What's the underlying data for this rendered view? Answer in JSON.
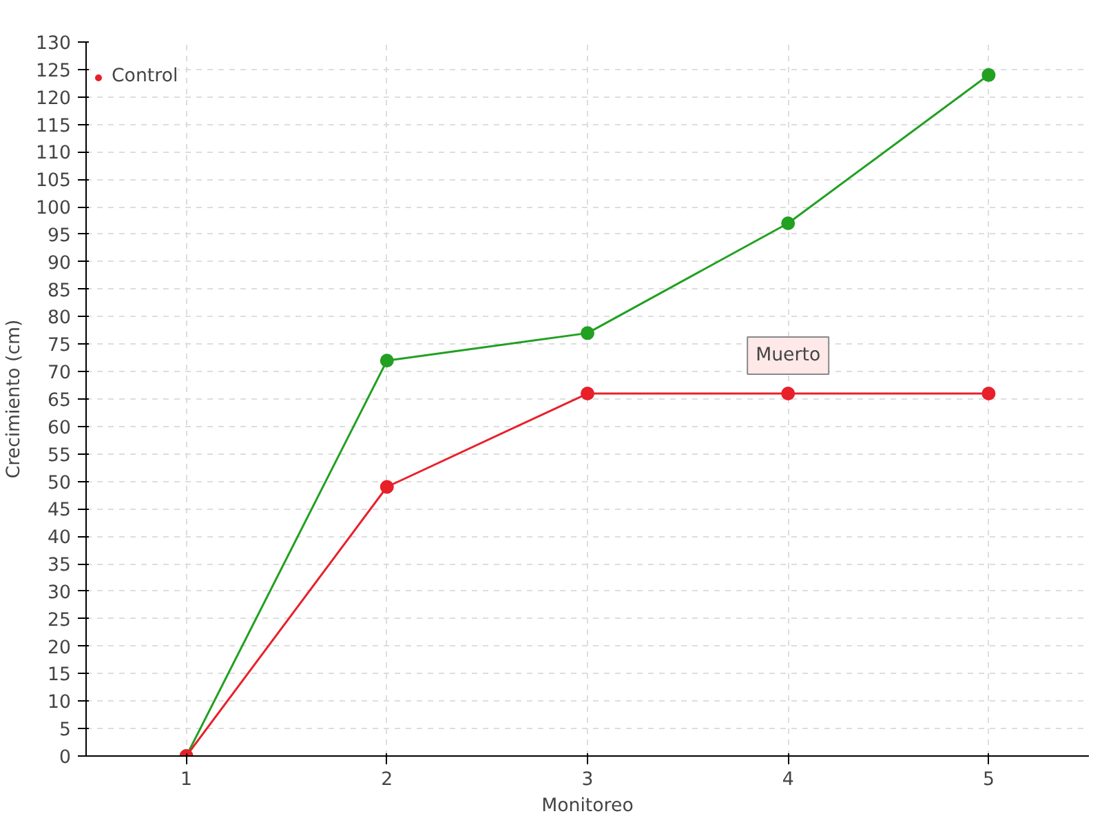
{
  "chart_data": {
    "type": "line",
    "xlabel": "Monitoreo",
    "ylabel": "Crecimiento (cm)",
    "x": [
      1,
      2,
      3,
      4,
      5
    ],
    "series": [
      {
        "color": "#22a022",
        "values": [
          0,
          72,
          77,
          97,
          124
        ]
      },
      {
        "name": "Control",
        "color": "#e8202a",
        "values": [
          0,
          49,
          66,
          66,
          66
        ]
      }
    ],
    "xlim": [
      0.5,
      5.5
    ],
    "xticks": [
      1,
      2,
      3,
      4,
      5
    ],
    "ylim": [
      0,
      130
    ],
    "yticks": [
      0,
      5,
      10,
      15,
      20,
      25,
      30,
      35,
      40,
      45,
      50,
      55,
      60,
      65,
      70,
      75,
      80,
      85,
      90,
      95,
      100,
      105,
      110,
      115,
      120,
      125,
      130
    ],
    "grid": true,
    "legend": "top left",
    "marker": "circle",
    "line_style": "solid",
    "annotations": [
      {
        "text": "Muerto",
        "x": 4,
        "y": 66
      }
    ]
  }
}
